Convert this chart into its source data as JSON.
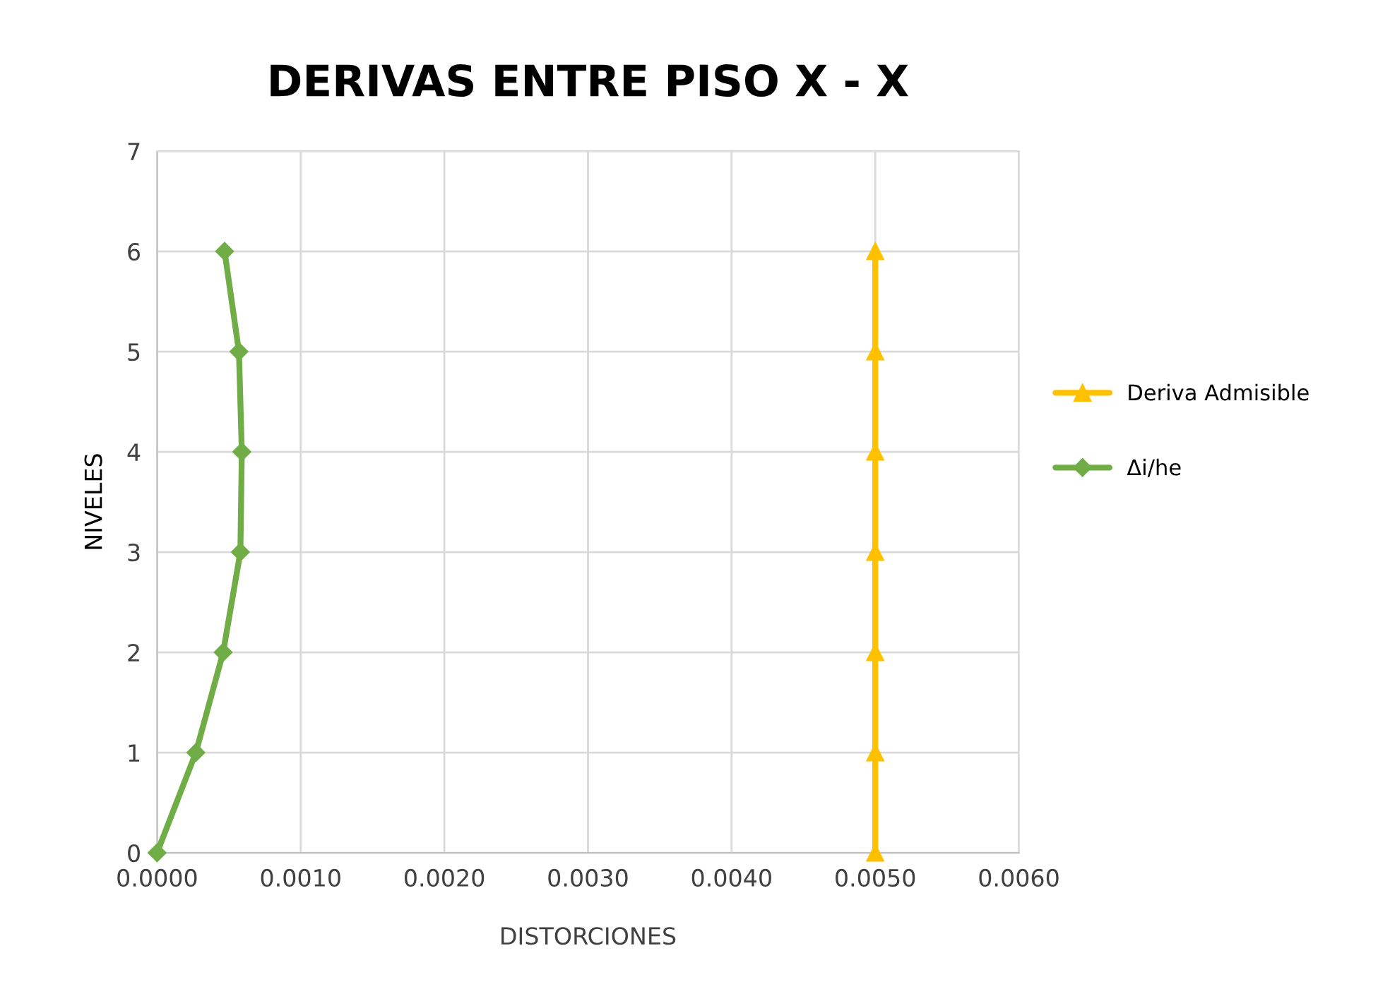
{
  "chart_data": {
    "type": "line",
    "title": "DERIVAS ENTRE PISO X - X",
    "xlabel": "DISTORCIONES",
    "ylabel": "NIVELES",
    "series": [
      {
        "name": "Deriva Admisible",
        "color": "#ffc000",
        "marker": "triangle",
        "x": [
          0.005,
          0.005,
          0.005,
          0.005,
          0.005,
          0.005,
          0.005
        ],
        "values": [
          0,
          1,
          2,
          3,
          4,
          5,
          6
        ]
      },
      {
        "name": "Δi/he",
        "color": "#70ad47",
        "marker": "diamond",
        "x": [
          0.0,
          0.00027,
          0.00046,
          0.00058,
          0.00059,
          0.00057,
          0.00047
        ],
        "values": [
          0,
          1,
          2,
          3,
          4,
          5,
          6
        ]
      }
    ],
    "xlim": [
      0,
      0.006
    ],
    "xticks": [
      {
        "value": 0,
        "label": "0.0000"
      },
      {
        "value": 0.001,
        "label": "0.0010"
      },
      {
        "value": 0.002,
        "label": "0.0020"
      },
      {
        "value": 0.003,
        "label": "0.0030"
      },
      {
        "value": 0.004,
        "label": "0.0040"
      },
      {
        "value": 0.005,
        "label": "0.0050"
      },
      {
        "value": 0.006,
        "label": "0.0060"
      }
    ],
    "ylim": [
      0,
      7
    ],
    "yticks": [
      0,
      1,
      2,
      3,
      4,
      5,
      6,
      7
    ],
    "grid": true,
    "legend": "right"
  }
}
